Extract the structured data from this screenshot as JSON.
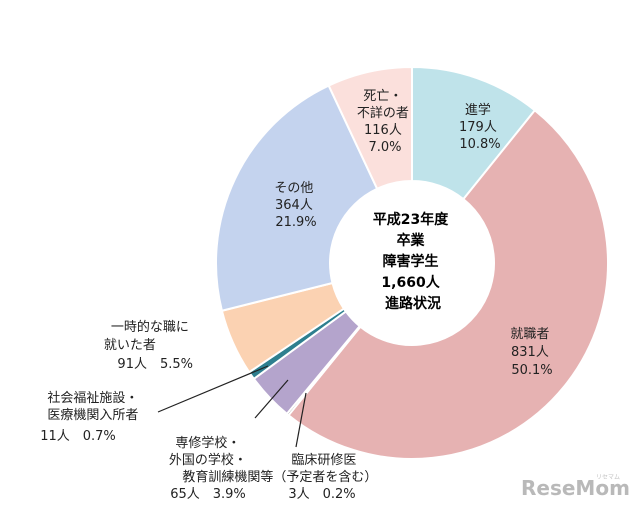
{
  "chart_data": {
    "type": "pie",
    "donut": true,
    "center_label": [
      "平成23年度",
      "卒業",
      "障害学生",
      "1,660人",
      "進路状況"
    ],
    "categories": [
      "進学",
      "就職者",
      "臨床研修医",
      "専修学校・外国の学校・教育訓練機関等（予定者を含む）",
      "社会福祉施設・医療機関入所者",
      "一時的な職に就いた者",
      "その他",
      "死亡・不詳の者"
    ],
    "values": [
      179,
      831,
      3,
      65,
      11,
      91,
      364,
      116
    ],
    "percents": [
      10.8,
      50.1,
      0.2,
      3.9,
      0.7,
      5.5,
      21.9,
      7.0
    ],
    "colors": [
      "#bfe3ea",
      "#e6b2b2",
      "#111111",
      "#b4a4cc",
      "#2e7f8f",
      "#fbd2b2",
      "#c4d3ee",
      "#fbe0dc"
    ]
  },
  "labels": {
    "shingaku": [
      "進学",
      "179人",
      "10.8%"
    ],
    "shushoku": [
      "就職者",
      "831人",
      "50.1%"
    ],
    "rinsho": [
      "臨床研修医",
      "3人　0.2%"
    ],
    "senshu": [
      "専修学校・",
      "外国の学校・",
      "教育訓練機関等（予定者を含む）",
      "65人　3.9%"
    ],
    "fukushi": [
      "社会福祉施設・",
      "医療機関入所者",
      "11人　0.7%"
    ],
    "ichiji": [
      "一時的な職に",
      "就いた者",
      "91人　5.5%"
    ],
    "sonota": [
      "その他",
      "364人",
      "21.9%"
    ],
    "shibou": [
      "死亡・",
      "不詳の者",
      "116人",
      "7.0%"
    ]
  },
  "watermark": {
    "brand": "ReseMom",
    "sub": "リセマム"
  }
}
